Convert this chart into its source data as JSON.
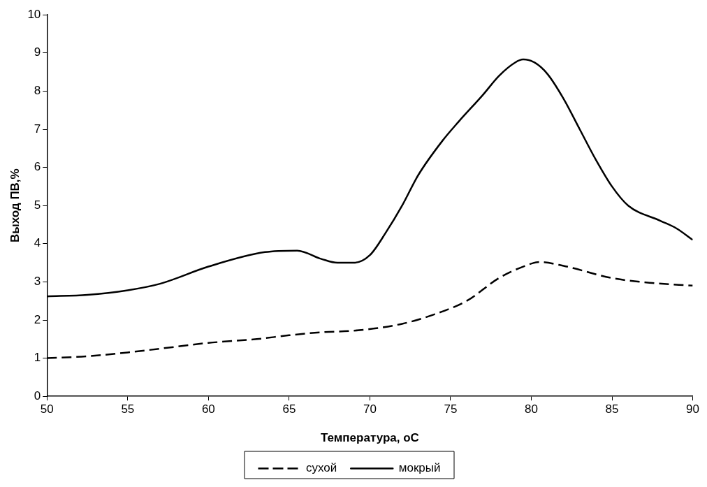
{
  "chart_data": {
    "type": "line",
    "xlabel": "Температура, оС",
    "ylabel": "Выход ПВ,%",
    "xlim": [
      50,
      90
    ],
    "xticks": [
      50,
      55,
      60,
      65,
      70,
      75,
      80,
      85,
      90
    ],
    "ylim": [
      0,
      10
    ],
    "yticks": [
      0,
      1,
      2,
      3,
      4,
      5,
      6,
      7,
      8,
      9,
      10
    ],
    "grid": false,
    "legend": "bottom",
    "marker": "none",
    "series": [
      {
        "name": "сухой",
        "color": "#000000",
        "line_style": "dashed",
        "x": [
          50,
          52.5,
          55,
          58,
          60,
          63,
          65,
          67,
          69,
          72,
          74,
          76,
          78,
          79.5,
          80.5,
          82,
          85,
          87.5,
          90
        ],
        "values": [
          1.0,
          1.05,
          1.15,
          1.3,
          1.4,
          1.5,
          1.6,
          1.68,
          1.72,
          1.9,
          2.15,
          2.5,
          3.1,
          3.4,
          3.52,
          3.42,
          3.1,
          2.97,
          2.9
        ]
      },
      {
        "name": "мокрый",
        "color": "#000000",
        "line_style": "solid",
        "x": [
          50,
          52.5,
          55,
          57,
          60,
          63.5,
          65.5,
          67,
          68,
          69,
          70,
          71,
          72,
          73,
          74.5,
          75.5,
          77,
          78,
          79,
          79.5,
          80.2,
          81,
          82,
          83,
          84,
          85,
          86,
          88,
          89,
          90
        ],
        "values": [
          2.62,
          2.66,
          2.78,
          2.95,
          3.4,
          3.78,
          3.82,
          3.6,
          3.5,
          3.5,
          3.7,
          4.3,
          5.0,
          5.8,
          6.7,
          7.2,
          7.9,
          8.4,
          8.75,
          8.83,
          8.75,
          8.45,
          7.8,
          7.0,
          6.2,
          5.5,
          5.0,
          4.6,
          4.4,
          4.1
        ]
      }
    ]
  }
}
